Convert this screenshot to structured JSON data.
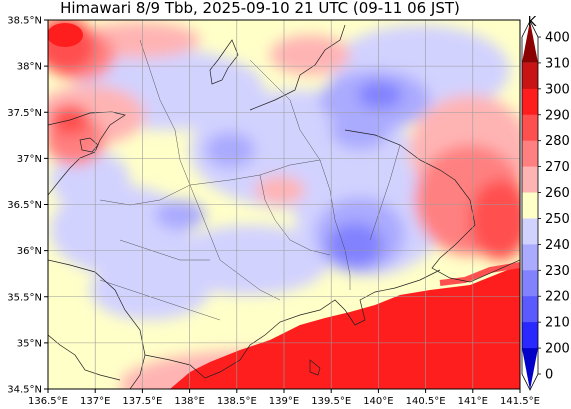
{
  "title": "Himawari 8/9 Tbb, 2025-09-10 21 UTC (09-11 06 JST)",
  "map": {
    "lon_range": [
      136.5,
      141.5
    ],
    "lat_range": [
      34.5,
      38.5
    ],
    "lon_ticks": [
      "136.5°E",
      "137°E",
      "137.5°E",
      "138°E",
      "138.5°E",
      "139°E",
      "139.5°E",
      "140°E",
      "140.5°E",
      "141°E",
      "141.5°E"
    ],
    "lat_ticks": [
      "38.5°N",
      "38°N",
      "37.5°N",
      "37°N",
      "36.5°N",
      "36°N",
      "35.5°N",
      "35°N",
      "34.5°N"
    ],
    "grid": true
  },
  "colorbar": {
    "unit": "K",
    "levels": [
      "400",
      "310",
      "300",
      "290",
      "280",
      "270",
      "260",
      "250",
      "240",
      "230",
      "220",
      "210",
      "200",
      "0"
    ],
    "colors": [
      "#8b0000",
      "#c81414",
      "#ff1e1e",
      "#ff5050",
      "#ff8080",
      "#ffb4b4",
      "#ffffc8",
      "#d2d2ff",
      "#aaaaff",
      "#8282ff",
      "#5a5aff",
      "#2828ff",
      "#0000c8"
    ]
  },
  "chart_data": {
    "type": "heatmap",
    "title": "Himawari 8/9 Tbb, 2025-09-10 21 UTC (09-11 06 JST)",
    "x": {
      "range": [
        136.5,
        141.5
      ],
      "ticks": [
        "136.5°E",
        "137°E",
        "137.5°E",
        "138°E",
        "138.5°E",
        "139°E",
        "139.5°E",
        "140°E",
        "140.5°E",
        "141°E",
        "141.5°E"
      ]
    },
    "y": {
      "range": [
        34.5,
        38.5
      ],
      "ticks": [
        "38.5°N",
        "38°N",
        "37.5°N",
        "37°N",
        "36.5°N",
        "36°N",
        "35.5°N",
        "35°N",
        "34.5°N"
      ]
    },
    "value_unit": "K",
    "levels": [
      0,
      200,
      210,
      220,
      230,
      240,
      250,
      260,
      270,
      280,
      290,
      300,
      310,
      400
    ],
    "grid": true,
    "legend": "right colorbar"
  }
}
